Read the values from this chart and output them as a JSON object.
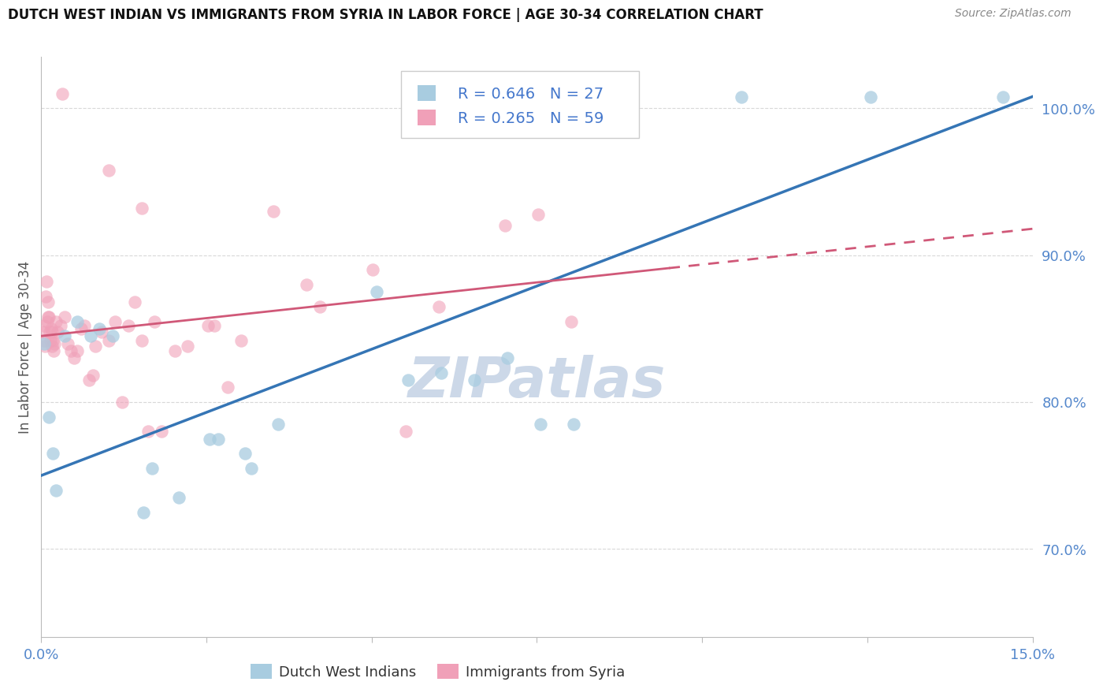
{
  "title": "DUTCH WEST INDIAN VS IMMIGRANTS FROM SYRIA IN LABOR FORCE | AGE 30-34 CORRELATION CHART",
  "source": "Source: ZipAtlas.com",
  "ylabel_label": "In Labor Force | Age 30-34",
  "xlim": [
    0.0,
    15.0
  ],
  "ylim": [
    64.0,
    103.5
  ],
  "yticks": [
    70,
    80,
    90,
    100
  ],
  "ytick_labels": [
    "70.0%",
    "80.0%",
    "90.0%",
    "100.0%"
  ],
  "xticks": [
    0,
    2.5,
    5.0,
    7.5,
    10.0,
    12.5,
    15.0
  ],
  "xtick_labels": [
    "0.0%",
    "",
    "",
    "",
    "",
    "",
    "15.0%"
  ],
  "legend1_R": "0.646",
  "legend1_N": "27",
  "legend2_R": "0.265",
  "legend2_N": "59",
  "legend1_label": "Dutch West Indians",
  "legend2_label": "Immigrants from Syria",
  "blue_color": "#a8cce0",
  "blue_line_color": "#3575b5",
  "pink_color": "#f0a0b8",
  "pink_line_color": "#d05878",
  "blue_dots": [
    [
      0.05,
      84.0
    ],
    [
      0.12,
      79.0
    ],
    [
      0.18,
      76.5
    ],
    [
      0.22,
      74.0
    ],
    [
      0.35,
      84.5
    ],
    [
      0.55,
      85.5
    ],
    [
      0.75,
      84.5
    ],
    [
      0.88,
      85.0
    ],
    [
      1.08,
      84.5
    ],
    [
      1.55,
      72.5
    ],
    [
      1.68,
      75.5
    ],
    [
      2.08,
      73.5
    ],
    [
      2.55,
      77.5
    ],
    [
      2.68,
      77.5
    ],
    [
      3.08,
      76.5
    ],
    [
      3.18,
      75.5
    ],
    [
      3.58,
      78.5
    ],
    [
      5.08,
      87.5
    ],
    [
      5.55,
      81.5
    ],
    [
      6.05,
      82.0
    ],
    [
      6.55,
      81.5
    ],
    [
      7.05,
      83.0
    ],
    [
      7.55,
      78.5
    ],
    [
      8.05,
      78.5
    ],
    [
      10.6,
      100.8
    ],
    [
      12.55,
      100.8
    ],
    [
      14.55,
      100.8
    ]
  ],
  "pink_dots": [
    [
      0.03,
      84.8
    ],
    [
      0.04,
      85.2
    ],
    [
      0.05,
      84.2
    ],
    [
      0.06,
      83.8
    ],
    [
      0.07,
      87.2
    ],
    [
      0.08,
      88.2
    ],
    [
      0.09,
      85.5
    ],
    [
      0.1,
      85.8
    ],
    [
      0.11,
      86.8
    ],
    [
      0.12,
      85.8
    ],
    [
      0.13,
      84.8
    ],
    [
      0.14,
      84.2
    ],
    [
      0.15,
      85.0
    ],
    [
      0.16,
      83.8
    ],
    [
      0.17,
      84.8
    ],
    [
      0.18,
      84.2
    ],
    [
      0.19,
      83.5
    ],
    [
      0.2,
      84.0
    ],
    [
      0.22,
      85.5
    ],
    [
      0.25,
      84.8
    ],
    [
      0.3,
      85.2
    ],
    [
      0.35,
      85.8
    ],
    [
      0.4,
      84.0
    ],
    [
      0.45,
      83.5
    ],
    [
      0.5,
      83.0
    ],
    [
      0.55,
      83.5
    ],
    [
      0.6,
      85.0
    ],
    [
      0.65,
      85.2
    ],
    [
      0.72,
      81.5
    ],
    [
      0.78,
      81.8
    ],
    [
      0.82,
      83.8
    ],
    [
      0.92,
      84.8
    ],
    [
      1.02,
      84.2
    ],
    [
      1.12,
      85.5
    ],
    [
      1.22,
      80.0
    ],
    [
      1.32,
      85.2
    ],
    [
      1.42,
      86.8
    ],
    [
      1.52,
      84.2
    ],
    [
      1.62,
      78.0
    ],
    [
      1.72,
      85.5
    ],
    [
      1.82,
      78.0
    ],
    [
      2.02,
      83.5
    ],
    [
      2.22,
      83.8
    ],
    [
      2.52,
      85.2
    ],
    [
      2.62,
      85.2
    ],
    [
      2.82,
      81.0
    ],
    [
      3.02,
      84.2
    ],
    [
      3.52,
      93.0
    ],
    [
      4.02,
      88.0
    ],
    [
      4.22,
      86.5
    ],
    [
      5.02,
      89.0
    ],
    [
      5.52,
      78.0
    ],
    [
      6.02,
      86.5
    ],
    [
      7.02,
      92.0
    ],
    [
      7.52,
      92.8
    ],
    [
      8.02,
      85.5
    ],
    [
      0.32,
      101.0
    ],
    [
      1.02,
      95.8
    ],
    [
      1.52,
      93.2
    ]
  ],
  "blue_trendline": [
    0.0,
    75.0,
    15.0,
    100.8
  ],
  "pink_trendline": [
    0.0,
    84.5,
    15.0,
    91.8
  ],
  "pink_dashed_start_x": 9.5,
  "grid_color": "#d8d8d8",
  "tick_color": "#5588cc",
  "watermark": "ZIPatlas",
  "watermark_color": "#ccd8e8",
  "legend_box_color": "#eeeeee",
  "legend_text_color": "#4477cc"
}
